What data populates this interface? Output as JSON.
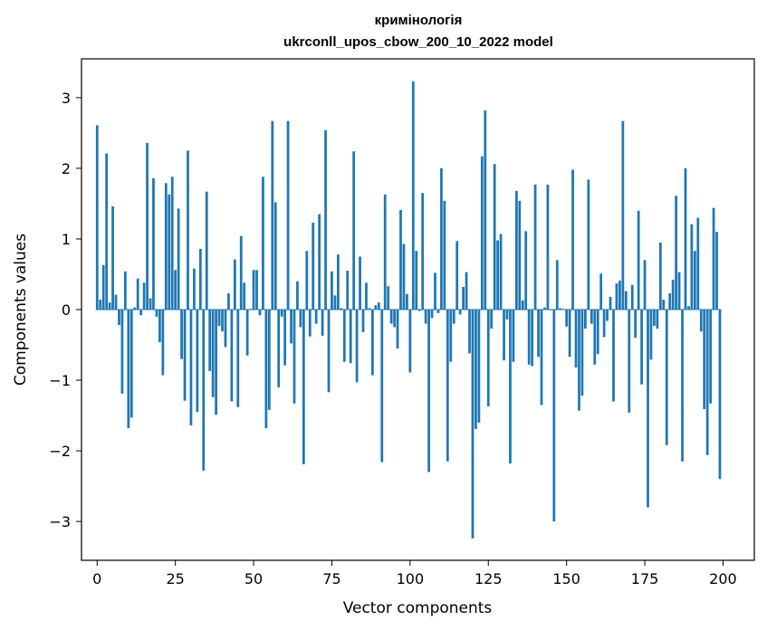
{
  "chart_data": {
    "type": "bar",
    "title": "кримінологія",
    "subtitle": "ukrconll_upos_cbow_200_10_2022 model",
    "xlabel": "Vector components",
    "ylabel": "Components values",
    "xlim": [
      -5,
      210
    ],
    "ylim": [
      -3.55,
      3.55
    ],
    "xticks": [
      0,
      25,
      50,
      75,
      100,
      125,
      150,
      175,
      200
    ],
    "yticks": [
      -3,
      -2,
      -1,
      0,
      1,
      2,
      3
    ],
    "ytick_labels": [
      "−3",
      "−2",
      "−1",
      "0",
      "1",
      "2",
      "3"
    ],
    "color": "#1f77b4",
    "x": [
      0,
      1,
      2,
      3,
      4,
      5,
      6,
      7,
      8,
      9,
      10,
      11,
      12,
      13,
      14,
      15,
      16,
      17,
      18,
      19,
      20,
      21,
      22,
      23,
      24,
      25,
      26,
      27,
      28,
      29,
      30,
      31,
      32,
      33,
      34,
      35,
      36,
      37,
      38,
      39,
      40,
      41,
      42,
      43,
      44,
      45,
      46,
      47,
      48,
      49,
      50,
      51,
      52,
      53,
      54,
      55,
      56,
      57,
      58,
      59,
      60,
      61,
      62,
      63,
      64,
      65,
      66,
      67,
      68,
      69,
      70,
      71,
      72,
      73,
      74,
      75,
      76,
      77,
      78,
      79,
      80,
      81,
      82,
      83,
      84,
      85,
      86,
      87,
      88,
      89,
      90,
      91,
      92,
      93,
      94,
      95,
      96,
      97,
      98,
      99,
      100,
      101,
      102,
      103,
      104,
      105,
      106,
      107,
      108,
      109,
      110,
      111,
      112,
      113,
      114,
      115,
      116,
      117,
      118,
      119,
      120,
      121,
      122,
      123,
      124,
      125,
      126,
      127,
      128,
      129,
      130,
      131,
      132,
      133,
      134,
      135,
      136,
      137,
      138,
      139,
      140,
      141,
      142,
      143,
      144,
      145,
      146,
      147,
      148,
      149,
      150,
      151,
      152,
      153,
      154,
      155,
      156,
      157,
      158,
      159,
      160,
      161,
      162,
      163,
      164,
      165,
      166,
      167,
      168,
      169,
      170,
      171,
      172,
      173,
      174,
      175,
      176,
      177,
      178,
      179,
      180,
      181,
      182,
      183,
      184,
      185,
      186,
      187,
      188,
      189,
      190,
      191,
      192,
      193,
      194,
      195,
      196,
      197,
      198,
      199
    ],
    "values": [
      2.61,
      0.14,
      0.63,
      2.21,
      0.1,
      1.46,
      0.21,
      -0.22,
      -1.19,
      0.54,
      -1.68,
      -1.53,
      0.03,
      0.44,
      -0.08,
      0.38,
      2.36,
      0.16,
      1.86,
      -0.1,
      -0.46,
      -0.93,
      1.79,
      1.63,
      1.88,
      0.56,
      1.43,
      -0.7,
      -1.29,
      2.25,
      -1.64,
      0.58,
      -1.45,
      0.86,
      -2.28,
      1.67,
      -0.87,
      -1.24,
      -1.49,
      -0.23,
      -0.31,
      -0.53,
      0.23,
      -1.3,
      0.71,
      -1.38,
      1.04,
      0.38,
      -0.65,
      0.01,
      0.56,
      0.56,
      -0.08,
      1.88,
      -1.68,
      -1.42,
      2.67,
      1.52,
      -1.1,
      -0.1,
      -0.79,
      2.67,
      -0.48,
      -1.33,
      0.4,
      -0.25,
      -2.19,
      0.83,
      -0.38,
      1.23,
      -0.2,
      1.35,
      -0.37,
      2.54,
      -1.17,
      0.54,
      0.2,
      0.78,
      0.02,
      -0.74,
      0.55,
      -0.76,
      2.24,
      -1.03,
      0.75,
      -0.32,
      0.38,
      0.02,
      -0.93,
      0.06,
      0.1,
      -2.16,
      1.63,
      0.33,
      -0.2,
      -0.25,
      -0.55,
      1.41,
      0.93,
      0.22,
      -0.89,
      3.23,
      0.83,
      -0.02,
      1.65,
      -0.2,
      -2.3,
      -0.12,
      0.52,
      -0.05,
      2.0,
      1.54,
      -2.15,
      -0.74,
      -0.2,
      0.97,
      -0.07,
      0.32,
      0.53,
      -0.62,
      -3.24,
      -1.69,
      -1.6,
      2.17,
      2.82,
      -1.37,
      -0.27,
      2.06,
      0.98,
      1.07,
      -0.72,
      -0.14,
      -2.18,
      -0.74,
      1.68,
      1.54,
      0.13,
      1.11,
      -0.78,
      -0.8,
      1.77,
      -0.67,
      -1.35,
      0.03,
      1.77,
      -0.01,
      -3.0,
      0.7,
      0.02,
      0.01,
      -0.24,
      -0.67,
      1.98,
      -0.82,
      -1.43,
      -1.22,
      -0.27,
      1.84,
      -0.2,
      -0.78,
      -0.63,
      0.51,
      -0.39,
      -0.16,
      0.18,
      -1.3,
      0.37,
      0.41,
      2.67,
      0.26,
      -1.46,
      0.35,
      -0.4,
      1.4,
      -1.06,
      0.7,
      -2.8,
      -0.71,
      -0.23,
      -0.27,
      0.95,
      0.14,
      -1.92,
      0.23,
      0.42,
      1.61,
      0.53,
      -2.15,
      2.0,
      0.05,
      1.21,
      0.83,
      1.3,
      -0.31,
      -1.41,
      -2.06,
      -1.33,
      1.44,
      1.1,
      -2.4
    ]
  }
}
